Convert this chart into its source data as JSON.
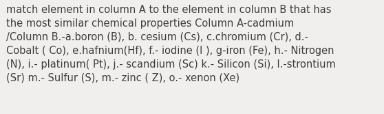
{
  "text": "match element in column A to the element in column B that has\nthe most similar chemical properties Column A-cadmium\n/Column B.-a.boron (B), b. cesium (Cs), c.chromium (Cr), d.-\nCobalt ( Co), e.hafnium(Hf), f.- iodine (I ), g-iron (Fe), h.- Nitrogen\n(N), i.- platinum( Pt), j.- scandium (Sc) k.- Silicon (Si), l.-strontium\n(Sr) m.- Sulfur (S), m.- zinc ( Z), o.- xenon (Xe)",
  "background_color": "#f0efed",
  "text_color": "#3d3d3d",
  "font_size": 10.5,
  "font_family": "DejaVu Sans",
  "fig_width": 5.58,
  "fig_height": 1.67,
  "dpi": 100
}
